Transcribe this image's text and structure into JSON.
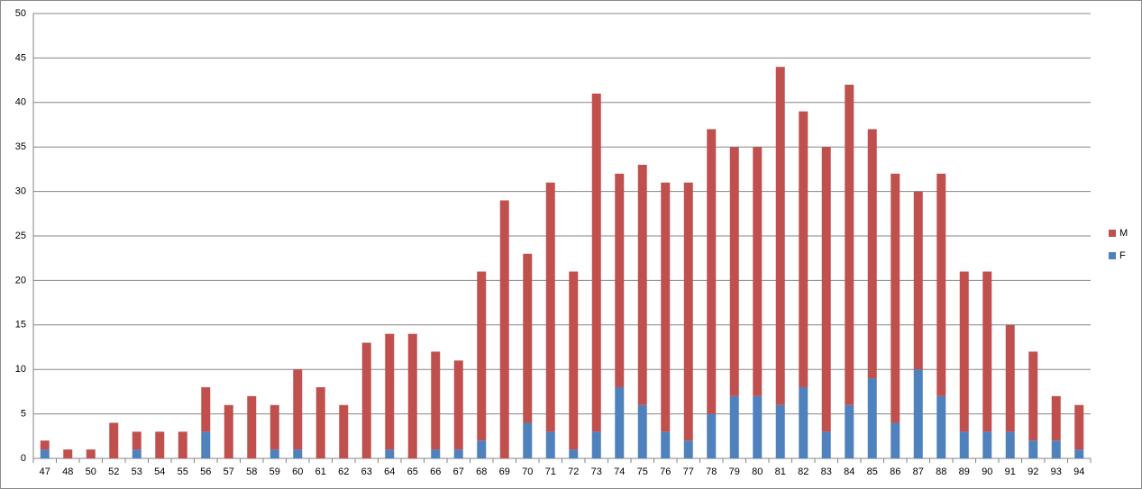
{
  "chart_data": {
    "type": "stacked-bar",
    "categories": [
      "47",
      "48",
      "50",
      "52",
      "53",
      "54",
      "55",
      "56",
      "57",
      "58",
      "59",
      "60",
      "61",
      "62",
      "63",
      "64",
      "65",
      "66",
      "67",
      "68",
      "69",
      "70",
      "71",
      "72",
      "73",
      "74",
      "75",
      "76",
      "77",
      "78",
      "79",
      "80",
      "81",
      "82",
      "83",
      "84",
      "85",
      "86",
      "87",
      "88",
      "89",
      "90",
      "91",
      "92",
      "93",
      "94"
    ],
    "series": [
      {
        "name": "F",
        "color": "#4f81bd",
        "values": [
          1,
          0,
          0,
          0,
          1,
          0,
          0,
          3,
          0,
          0,
          1,
          1,
          0,
          0,
          0,
          1,
          0,
          1,
          1,
          2,
          0,
          4,
          3,
          1,
          3,
          8,
          6,
          3,
          2,
          5,
          7,
          7,
          6,
          8,
          3,
          6,
          9,
          4,
          10,
          7,
          3,
          3,
          3,
          2,
          2,
          1
        ]
      },
      {
        "name": "M",
        "color": "#c0504d",
        "values": [
          1,
          1,
          1,
          4,
          2,
          3,
          3,
          5,
          6,
          7,
          5,
          9,
          8,
          6,
          13,
          13,
          14,
          11,
          10,
          19,
          29,
          19,
          28,
          20,
          38,
          24,
          27,
          28,
          29,
          32,
          28,
          28,
          38,
          31,
          32,
          36,
          28,
          28,
          20,
          25,
          18,
          18,
          12,
          10,
          5,
          5
        ]
      }
    ],
    "ylim": [
      0,
      50
    ],
    "yticks": [
      0,
      5,
      10,
      15,
      20,
      25,
      30,
      35,
      40,
      45,
      50
    ],
    "grid": true,
    "legend": "right"
  }
}
